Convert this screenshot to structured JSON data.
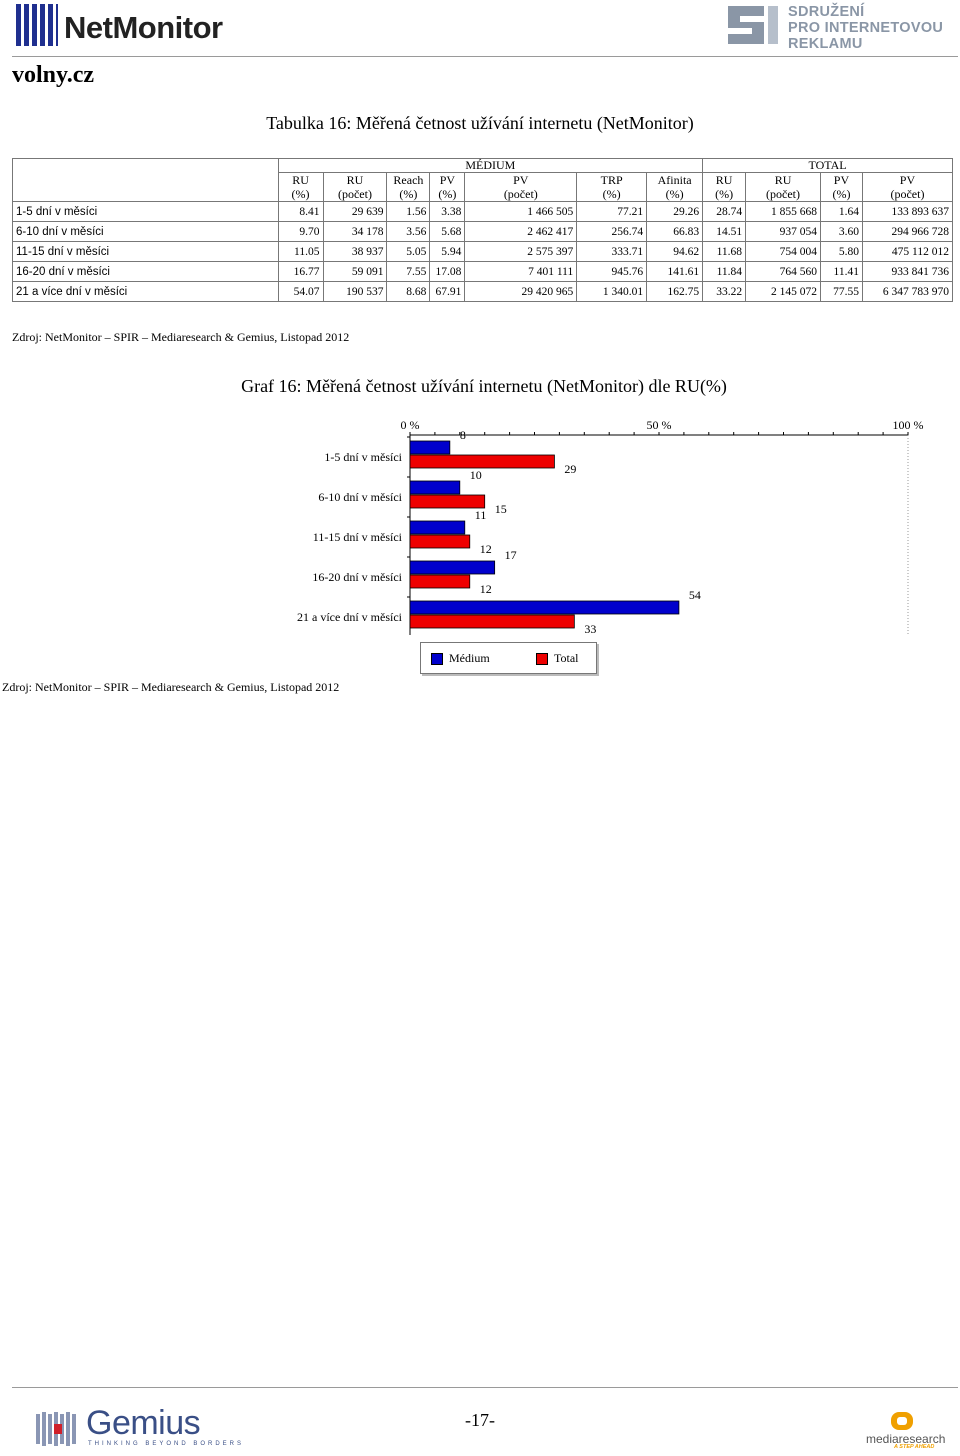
{
  "header": {
    "logo_text": "NetMonitor",
    "spir_lines": [
      "SDRUŽENÍ",
      "PRO INTERNETOVOU",
      "REKLAMU"
    ],
    "site": "volny.cz"
  },
  "table": {
    "title": "Tabulka 16: Měřená četnost užívání internetu (NetMonitor)",
    "group_medium": "MÉDIUM",
    "group_total": "TOTAL",
    "columns": [
      [
        "RU",
        "(%)"
      ],
      [
        "RU",
        "(počet)"
      ],
      [
        "Reach",
        "(%)"
      ],
      [
        "PV",
        "(%)"
      ],
      [
        "PV",
        "(počet)"
      ],
      [
        "TRP",
        "(%)"
      ],
      [
        "Afinita",
        "(%)"
      ],
      [
        "RU",
        "(%)"
      ],
      [
        "RU",
        "(počet)"
      ],
      [
        "PV",
        "(%)"
      ],
      [
        "PV",
        "(počet)"
      ]
    ],
    "rows": [
      {
        "label": "1-5 dní v měsíci",
        "cells": [
          "8.41",
          "29 639",
          "1.56",
          "3.38",
          "1 466 505",
          "77.21",
          "29.26",
          "28.74",
          "1 855 668",
          "1.64",
          "133 893 637"
        ]
      },
      {
        "label": "6-10 dní v měsíci",
        "cells": [
          "9.70",
          "34 178",
          "3.56",
          "5.68",
          "2 462 417",
          "256.74",
          "66.83",
          "14.51",
          "937 054",
          "3.60",
          "294 966 728"
        ]
      },
      {
        "label": "11-15 dní v měsíci",
        "cells": [
          "11.05",
          "38 937",
          "5.05",
          "5.94",
          "2 575 397",
          "333.71",
          "94.62",
          "11.68",
          "754 004",
          "5.80",
          "475 112 012"
        ]
      },
      {
        "label": "16-20 dní v měsíci",
        "cells": [
          "16.77",
          "59 091",
          "7.55",
          "17.08",
          "7 401 111",
          "945.76",
          "141.61",
          "11.84",
          "764 560",
          "11.41",
          "933 841 736"
        ]
      },
      {
        "label": "21 a více dní v měsíci",
        "cells": [
          "54.07",
          "190 537",
          "8.68",
          "67.91",
          "29 420 965",
          "1 340.01",
          "162.75",
          "33.22",
          "2 145 072",
          "77.55",
          "6 347 783 970"
        ]
      }
    ],
    "source": "Zdroj: NetMonitor – SPIR – Mediaresearch & Gemius, Listopad 2012"
  },
  "chart_data": {
    "type": "bar",
    "orientation": "horizontal",
    "title": "Graf 16: Měřená četnost užívání internetu (NetMonitor) dle RU(%)",
    "categories": [
      "1-5 dní v měsíci",
      "6-10 dní v měsíci",
      "11-15 dní v měsíci",
      "16-20 dní v měsíci",
      "21 a více dní v měsíci"
    ],
    "series": [
      {
        "name": "Médium",
        "values": [
          8,
          10,
          11,
          17,
          54
        ],
        "color": "#0000cc"
      },
      {
        "name": "Total",
        "values": [
          29,
          15,
          12,
          12,
          33
        ],
        "color": "#ee0000"
      }
    ],
    "xlim": [
      0,
      100
    ],
    "x_tick_labels": [
      "0 %",
      "50 %",
      "100 %"
    ],
    "x_ticks": [
      0,
      50,
      100
    ],
    "axis_position": "top",
    "legend": "bottom",
    "grid": false
  },
  "chart_source": "Zdroj: NetMonitor – SPIR – Mediaresearch & Gemius, Listopad 2012",
  "footer": {
    "gemius_text": "Gemius",
    "gemius_tagline": "THINKING BEYOND BORDERS",
    "page_number": "-17-",
    "mediaresearch_text": "mediaresearch",
    "mediaresearch_tagline": "A STEP AHEAD"
  }
}
